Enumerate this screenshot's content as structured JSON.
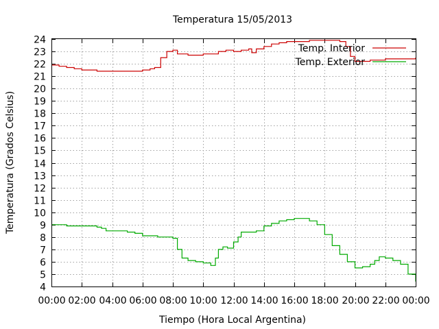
{
  "chart_data": {
    "type": "line",
    "title": "Temperatura 15/05/2013",
    "xlabel": "Tiempo (Hora Local Argentina)",
    "ylabel": "Temperatura (Grados Celsius)",
    "xlim": [
      0,
      24
    ],
    "ylim": [
      4,
      24
    ],
    "x_ticks": [
      "00:00",
      "02:00",
      "04:00",
      "06:00",
      "08:00",
      "10:00",
      "12:00",
      "14:00",
      "16:00",
      "18:00",
      "20:00",
      "22:00",
      "00:00"
    ],
    "y_ticks": [
      4,
      5,
      6,
      7,
      8,
      9,
      10,
      11,
      12,
      13,
      14,
      15,
      16,
      17,
      18,
      19,
      20,
      21,
      22,
      23,
      24
    ],
    "grid": true,
    "legend_position": "top-right",
    "series": [
      {
        "name": "Temp. Interior",
        "color": "#cc0000",
        "x": [
          0,
          0.5,
          1,
          1.5,
          2,
          3,
          4,
          5,
          6,
          6.5,
          6.8,
          7.2,
          7.6,
          8,
          8.3,
          9,
          10,
          11,
          11.5,
          12,
          12.5,
          13,
          13.2,
          13.5,
          14,
          14.5,
          15,
          15.5,
          16,
          17,
          18,
          19,
          19.4,
          19.7,
          20,
          21,
          22,
          23,
          24
        ],
        "y": [
          21.9,
          21.8,
          21.7,
          21.6,
          21.5,
          21.4,
          21.4,
          21.4,
          21.5,
          21.6,
          21.7,
          22.5,
          23.0,
          23.1,
          22.8,
          22.7,
          22.8,
          23.0,
          23.1,
          23.0,
          23.1,
          23.2,
          22.9,
          23.2,
          23.4,
          23.6,
          23.7,
          23.8,
          23.8,
          23.9,
          23.9,
          23.8,
          23.4,
          22.6,
          22.2,
          22.3,
          22.4,
          22.4,
          22.5
        ]
      },
      {
        "name": "Temp. Exterior",
        "color": "#00aa00",
        "x": [
          0,
          0.5,
          1,
          2,
          3,
          3.3,
          3.6,
          4,
          5,
          5.5,
          6,
          7,
          7.5,
          8,
          8.3,
          8.6,
          9,
          9.5,
          10,
          10.5,
          10.8,
          11,
          11.3,
          11.6,
          12,
          12.3,
          12.5,
          13,
          13.5,
          14,
          14.5,
          15,
          15.5,
          16,
          16.5,
          17,
          17.5,
          18,
          18.5,
          19,
          19.5,
          20,
          20.5,
          21,
          21.3,
          21.6,
          22,
          22.5,
          23,
          23.5,
          24
        ],
        "y": [
          9.0,
          9.0,
          8.9,
          8.9,
          8.8,
          8.7,
          8.5,
          8.5,
          8.4,
          8.3,
          8.1,
          8.0,
          8.0,
          7.9,
          7.0,
          6.3,
          6.1,
          6.0,
          5.9,
          5.7,
          6.3,
          7.0,
          7.2,
          7.1,
          7.6,
          8.0,
          8.4,
          8.4,
          8.5,
          8.9,
          9.1,
          9.3,
          9.4,
          9.5,
          9.5,
          9.3,
          9.0,
          8.2,
          7.3,
          6.6,
          6.0,
          5.5,
          5.6,
          5.8,
          6.1,
          6.4,
          6.3,
          6.1,
          5.8,
          5.0,
          4.4
        ]
      }
    ]
  }
}
